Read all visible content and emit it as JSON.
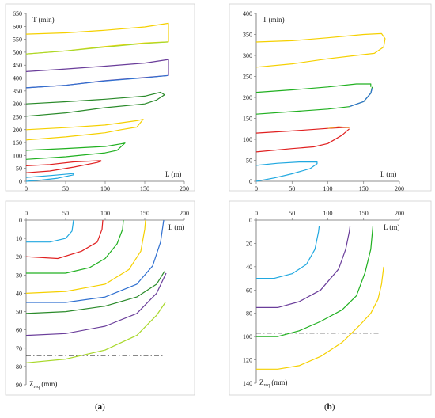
{
  "captions": {
    "a_open": "(",
    "a_letter": "a",
    "a_close": ")",
    "b_open": "(",
    "b_letter": "b",
    "b_close": ")"
  },
  "colors": {
    "yellow": "#f5d000",
    "lime": "#a8d82a",
    "purple": "#6a3d9a",
    "blue": "#3070d0",
    "darkgreen": "#2a8a2a",
    "orange": "#f0a030",
    "green": "#20b020",
    "red": "#e02020",
    "cyan": "#20a8e0",
    "lightgreen": "#33cc33"
  },
  "chart_data": [
    {
      "id": "a-top",
      "type": "line",
      "ylabel": "T (min)",
      "xlabel": "L (m)",
      "xlim": [
        0,
        200
      ],
      "ylim": [
        0,
        650
      ],
      "xticks": [
        "0",
        "50",
        "100",
        "150",
        "200"
      ],
      "yticks": [
        "0",
        "50",
        "100",
        "150",
        "200",
        "250",
        "300",
        "350",
        "400",
        "450",
        "500",
        "550",
        "600",
        "650"
      ],
      "series": [
        {
          "color": "yellow",
          "points": [
            [
              0,
              570
            ],
            [
              50,
              575
            ],
            [
              100,
              585
            ],
            [
              150,
              598
            ],
            [
              180,
              612
            ],
            [
              180,
              540
            ],
            [
              150,
              536
            ],
            [
              100,
              522
            ],
            [
              50,
              505
            ],
            [
              0,
              493
            ]
          ]
        },
        {
          "color": "lime",
          "points": [
            [
              0,
              493
            ],
            [
              50,
              505
            ],
            [
              100,
              520
            ],
            [
              150,
              534
            ],
            [
              180,
              540
            ]
          ]
        },
        {
          "color": "purple",
          "points": [
            [
              0,
              425
            ],
            [
              50,
              435
            ],
            [
              100,
              446
            ],
            [
              150,
              458
            ],
            [
              180,
              472
            ],
            [
              180,
              410
            ],
            [
              150,
              402
            ],
            [
              100,
              390
            ],
            [
              50,
              372
            ],
            [
              0,
              362
            ]
          ]
        },
        {
          "color": "blue",
          "points": [
            [
              0,
              362
            ],
            [
              50,
              372
            ],
            [
              100,
              389
            ],
            [
              150,
              401
            ],
            [
              180,
              410
            ]
          ]
        },
        {
          "color": "darkgreen",
          "points": [
            [
              0,
              300
            ],
            [
              50,
              308
            ],
            [
              100,
              318
            ],
            [
              150,
              330
            ],
            [
              170,
              345
            ],
            [
              175,
              335
            ],
            [
              165,
              315
            ],
            [
              150,
              300
            ],
            [
              100,
              285
            ],
            [
              50,
              265
            ],
            [
              0,
              252
            ]
          ]
        },
        {
          "color": "yellow",
          "points": [
            [
              0,
              200
            ],
            [
              50,
              208
            ],
            [
              100,
              218
            ],
            [
              140,
              235
            ],
            [
              148,
              240
            ],
            [
              140,
              210
            ],
            [
              120,
              200
            ],
            [
              100,
              188
            ],
            [
              50,
              172
            ],
            [
              0,
              160
            ]
          ]
        },
        {
          "color": "green",
          "points": [
            [
              0,
              120
            ],
            [
              50,
              127
            ],
            [
              100,
              135
            ],
            [
              120,
              145
            ],
            [
              125,
              148
            ],
            [
              115,
              120
            ],
            [
              100,
              110
            ],
            [
              50,
              95
            ],
            [
              0,
              85
            ]
          ]
        },
        {
          "color": "red",
          "points": [
            [
              0,
              33
            ],
            [
              30,
              40
            ],
            [
              60,
              55
            ],
            [
              90,
              73
            ],
            [
              95,
              78
            ],
            [
              95,
              80
            ]
          ]
        },
        {
          "color": "red",
          "points": [
            [
              0,
              60
            ],
            [
              30,
              65
            ],
            [
              60,
              75
            ],
            [
              95,
              80
            ]
          ]
        },
        {
          "color": "cyan",
          "points": [
            [
              0,
              0
            ],
            [
              20,
              5
            ],
            [
              40,
              12
            ],
            [
              60,
              25
            ],
            [
              60,
              30
            ],
            [
              30,
              22
            ],
            [
              0,
              15
            ]
          ]
        }
      ]
    },
    {
      "id": "b-top",
      "type": "line",
      "ylabel": "T (min)",
      "xlabel": "L (m)",
      "xlim": [
        0,
        200
      ],
      "ylim": [
        0,
        400
      ],
      "xticks": [
        "0",
        "50",
        "100",
        "150",
        "200"
      ],
      "yticks": [
        "0",
        "50",
        "100",
        "150",
        "200",
        "250",
        "300",
        "350",
        "400"
      ],
      "series": [
        {
          "color": "yellow",
          "points": [
            [
              0,
              332
            ],
            [
              50,
              335
            ],
            [
              100,
              342
            ],
            [
              150,
              350
            ],
            [
              175,
              352
            ],
            [
              180,
              340
            ],
            [
              178,
              320
            ],
            [
              165,
              305
            ],
            [
              150,
              302
            ],
            [
              100,
              292
            ],
            [
              50,
              280
            ],
            [
              0,
              272
            ]
          ]
        },
        {
          "color": "green",
          "points": [
            [
              0,
              212
            ],
            [
              50,
              218
            ],
            [
              100,
              225
            ],
            [
              140,
              232
            ],
            [
              160,
              232
            ],
            [
              160,
              225
            ]
          ]
        },
        {
          "color": "green",
          "points": [
            [
              0,
              160
            ],
            [
              50,
              166
            ],
            [
              100,
              172
            ],
            [
              130,
              178
            ],
            [
              150,
              190
            ],
            [
              160,
              210
            ],
            [
              162,
              225
            ]
          ]
        },
        {
          "color": "blue",
          "points": [
            [
              130,
              178
            ],
            [
              150,
              190
            ],
            [
              160,
              210
            ],
            [
              162,
              222
            ]
          ]
        },
        {
          "color": "red",
          "points": [
            [
              0,
              115
            ],
            [
              50,
              120
            ],
            [
              100,
              126
            ],
            [
              120,
              128
            ],
            [
              130,
              128
            ]
          ]
        },
        {
          "color": "red",
          "points": [
            [
              0,
              70
            ],
            [
              50,
              78
            ],
            [
              80,
              82
            ],
            [
              100,
              90
            ],
            [
              120,
              110
            ],
            [
              130,
              125
            ]
          ]
        },
        {
          "color": "orange",
          "points": [
            [
              100,
              126
            ],
            [
              115,
              130
            ],
            [
              130,
              128
            ]
          ]
        },
        {
          "color": "cyan",
          "points": [
            [
              0,
              38
            ],
            [
              30,
              43
            ],
            [
              60,
              46
            ],
            [
              85,
              46
            ],
            [
              85,
              42
            ],
            [
              75,
              30
            ],
            [
              50,
              18
            ],
            [
              25,
              8
            ],
            [
              0,
              0
            ]
          ]
        }
      ]
    },
    {
      "id": "a-bottom",
      "type": "line",
      "ylabel": "Z",
      "ylabel_sub": "req",
      "ylabel_unit": " (mm)",
      "xlabel": "L (m)",
      "xlim": [
        0,
        200
      ],
      "ylim": [
        90,
        0
      ],
      "inverted": true,
      "threshold": 74,
      "xticks": [
        "0",
        "50",
        "100",
        "150",
        "200"
      ],
      "yticks": [
        "0",
        "10",
        "20",
        "30",
        "40",
        "50",
        "60",
        "70",
        "80",
        "90"
      ],
      "series": [
        {
          "color": "cyan",
          "points": [
            [
              0,
              12
            ],
            [
              30,
              12
            ],
            [
              50,
              10
            ],
            [
              58,
              6
            ],
            [
              60,
              0
            ]
          ]
        },
        {
          "color": "red",
          "points": [
            [
              0,
              20
            ],
            [
              40,
              21
            ],
            [
              70,
              17
            ],
            [
              90,
              12
            ],
            [
              96,
              5
            ],
            [
              97,
              0
            ]
          ]
        },
        {
          "color": "green",
          "points": [
            [
              0,
              29
            ],
            [
              50,
              29
            ],
            [
              80,
              26
            ],
            [
              100,
              21
            ],
            [
              115,
              13
            ],
            [
              122,
              5
            ],
            [
              123,
              0
            ]
          ]
        },
        {
          "color": "yellow",
          "points": [
            [
              0,
              40
            ],
            [
              50,
              39
            ],
            [
              100,
              35
            ],
            [
              130,
              27
            ],
            [
              145,
              17
            ],
            [
              150,
              5
            ],
            [
              151,
              0
            ]
          ]
        },
        {
          "color": "blue",
          "points": [
            [
              0,
              45
            ],
            [
              50,
              45
            ],
            [
              100,
              42
            ],
            [
              140,
              35
            ],
            [
              160,
              25
            ],
            [
              170,
              12
            ],
            [
              174,
              0
            ]
          ]
        },
        {
          "color": "darkgreen",
          "points": [
            [
              0,
              51
            ],
            [
              50,
              50
            ],
            [
              100,
              47
            ],
            [
              140,
              42
            ],
            [
              165,
              35
            ],
            [
              175,
              28
            ]
          ]
        },
        {
          "color": "purple",
          "points": [
            [
              0,
              63
            ],
            [
              50,
              62
            ],
            [
              100,
              58
            ],
            [
              140,
              51
            ],
            [
              165,
              40
            ],
            [
              177,
              29
            ]
          ]
        },
        {
          "color": "lime",
          "points": [
            [
              0,
              78
            ],
            [
              50,
              76
            ],
            [
              100,
              71
            ],
            [
              140,
              63
            ],
            [
              165,
              52
            ],
            [
              176,
              45
            ]
          ]
        }
      ]
    },
    {
      "id": "b-bottom",
      "type": "line",
      "ylabel": "Z",
      "ylabel_sub": "req",
      "ylabel_unit": " (mm)",
      "xlabel": "L (m)",
      "xlim": [
        0,
        200
      ],
      "ylim": [
        140,
        0
      ],
      "inverted": true,
      "threshold": 97,
      "xticks": [
        "0",
        "50",
        "100",
        "150",
        "200"
      ],
      "yticks": [
        "0",
        "20",
        "40",
        "60",
        "80",
        "100",
        "120",
        "140"
      ],
      "series": [
        {
          "color": "cyan",
          "points": [
            [
              0,
              50
            ],
            [
              25,
              50
            ],
            [
              50,
              46
            ],
            [
              70,
              38
            ],
            [
              82,
              25
            ],
            [
              87,
              10
            ],
            [
              88,
              5
            ]
          ]
        },
        {
          "color": "purple",
          "points": [
            [
              0,
              75
            ],
            [
              30,
              75
            ],
            [
              60,
              70
            ],
            [
              90,
              60
            ],
            [
              115,
              42
            ],
            [
              125,
              25
            ],
            [
              130,
              10
            ],
            [
              131,
              5
            ]
          ]
        },
        {
          "color": "green",
          "points": [
            [
              0,
              100
            ],
            [
              30,
              100
            ],
            [
              60,
              95
            ],
            [
              90,
              87
            ],
            [
              120,
              77
            ],
            [
              140,
              65
            ],
            [
              152,
              45
            ],
            [
              160,
              25
            ],
            [
              163,
              5
            ]
          ]
        },
        {
          "color": "yellow",
          "points": [
            [
              0,
              128
            ],
            [
              30,
              128
            ],
            [
              60,
              125
            ],
            [
              90,
              117
            ],
            [
              120,
              105
            ],
            [
              145,
              90
            ],
            [
              160,
              80
            ],
            [
              170,
              68
            ],
            [
              175,
              55
            ],
            [
              178,
              40
            ]
          ]
        }
      ]
    }
  ]
}
